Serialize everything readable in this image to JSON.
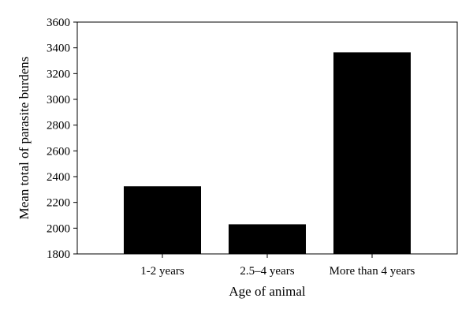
{
  "chart_data": {
    "type": "bar",
    "title": "",
    "xlabel": "Age of animal",
    "ylabel": "Mean total of parasite burdens",
    "categories": [
      "1-2 years",
      "2.5–4 years",
      "More than 4 years"
    ],
    "values": [
      2325,
      2030,
      3365
    ],
    "ylim": [
      1800,
      3600
    ],
    "yticks": [
      1800,
      2000,
      2200,
      2400,
      2600,
      2800,
      3000,
      3200,
      3400,
      3600
    ],
    "grid": false,
    "legend": "none",
    "bar_color": "#000000"
  }
}
